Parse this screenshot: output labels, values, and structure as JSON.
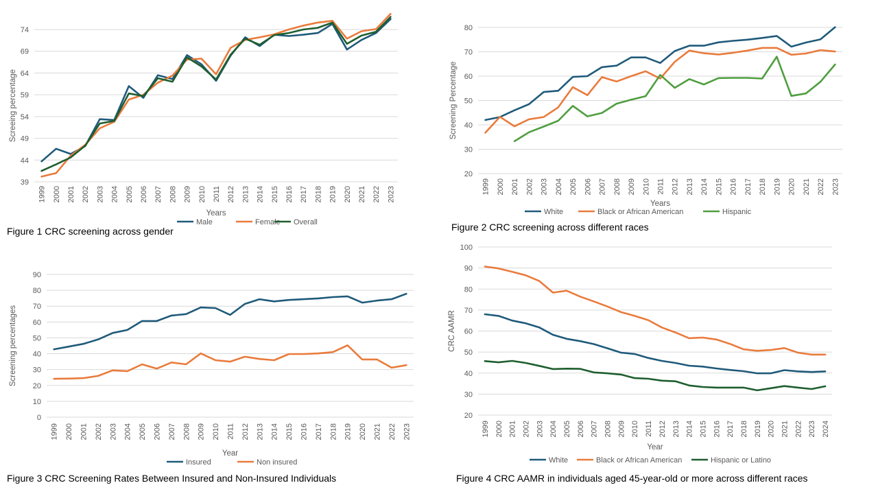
{
  "captions": {
    "fig1": "Figure 1 CRC screening across gender",
    "fig2": "Figure 2 CRC screening across different races",
    "fig3": "Figure 3 CRC Screening Rates Between Insured and Non-Insured Individuals",
    "fig4": "Figure 4 CRC AAMR in individuals aged 45-year-old or more across different races"
  },
  "chart_data": [
    {
      "type": "line",
      "title": "",
      "xlabel": "Years",
      "ylabel": "Screeing percentage",
      "ylim": [
        39,
        74
      ],
      "yticks": [
        39,
        44,
        49,
        54,
        59,
        64,
        69,
        74
      ],
      "grid": true,
      "legend": "bottom",
      "categories": [
        "1999",
        "2000",
        "2001",
        "2002",
        "2003",
        "2004",
        "2005",
        "2006",
        "2007",
        "2008",
        "2009",
        "2010",
        "2011",
        "2012",
        "2013",
        "2014",
        "2015",
        "2016",
        "2017",
        "2018",
        "2019",
        "2020",
        "2021",
        "2022",
        "2023"
      ],
      "series": [
        {
          "name": "Male",
          "color": "#1f5a7a",
          "values": [
            43.7,
            46.6,
            45.4,
            47.2,
            53.4,
            53.2,
            61.0,
            58.3,
            63.5,
            62.6,
            68.1,
            66.0,
            62.2,
            68.0,
            72.2,
            70.2,
            72.8,
            72.5,
            72.8,
            73.2,
            75.3,
            69.4,
            71.6,
            73.2,
            76.4
          ]
        },
        {
          "name": "Female",
          "color": "#e97b3c",
          "values": [
            40.2,
            41.0,
            45.0,
            47.5,
            51.3,
            52.8,
            57.9,
            59.0,
            61.8,
            63.4,
            67.1,
            67.3,
            63.7,
            69.8,
            71.6,
            72.2,
            72.9,
            74.0,
            74.9,
            75.6,
            76.0,
            71.9,
            73.6,
            74.1,
            77.6
          ]
        },
        {
          "name": "Overall",
          "color": "#1e5e2f",
          "values": [
            41.5,
            43.0,
            44.6,
            47.3,
            52.4,
            53.0,
            59.3,
            58.7,
            62.8,
            62.0,
            67.6,
            65.5,
            62.5,
            68.2,
            71.9,
            70.5,
            72.7,
            73.2,
            74.0,
            74.4,
            75.6,
            70.7,
            72.6,
            73.5,
            76.9
          ]
        }
      ]
    },
    {
      "type": "line",
      "title": "",
      "xlabel": "Years",
      "ylabel": "Screening Percentage",
      "ylim": [
        20,
        80
      ],
      "yticks": [
        20,
        30,
        40,
        50,
        60,
        70,
        80
      ],
      "grid": true,
      "legend": "bottom",
      "categories": [
        "1999",
        "2000",
        "2001",
        "2002",
        "2003",
        "2004",
        "2005",
        "2006",
        "2007",
        "2008",
        "2009",
        "2010",
        "2011",
        "2012",
        "2013",
        "2014",
        "2015",
        "2016",
        "2017",
        "2018",
        "2019",
        "2020",
        "2021",
        "2022",
        "2023"
      ],
      "series": [
        {
          "name": "White",
          "color": "#1f5a7a",
          "values": [
            42.0,
            43.2,
            46.0,
            48.5,
            53.5,
            54.0,
            59.7,
            60.0,
            63.7,
            64.3,
            67.7,
            67.7,
            65.4,
            70.3,
            72.5,
            72.5,
            73.9,
            74.5,
            75.0,
            75.7,
            76.5,
            72.1,
            73.8,
            75.1,
            80.1
          ]
        },
        {
          "name": "Black or African American",
          "color": "#e97b3c",
          "values": [
            36.8,
            43.3,
            39.4,
            42.3,
            43.2,
            47.2,
            55.5,
            52.2,
            59.6,
            57.8,
            60.0,
            62.0,
            59.0,
            65.9,
            70.5,
            69.4,
            68.9,
            69.6,
            70.5,
            71.6,
            71.6,
            68.8,
            69.3,
            70.7,
            70.1
          ]
        },
        {
          "name": "Hispanic",
          "color": "#4e9e3e",
          "values": [
            null,
            null,
            33.3,
            37.0,
            39.3,
            41.7,
            47.8,
            43.5,
            44.9,
            48.7,
            50.3,
            51.8,
            60.5,
            55.2,
            58.8,
            56.6,
            59.2,
            59.3,
            59.3,
            59.0,
            68.0,
            51.9,
            52.9,
            57.7,
            64.8
          ]
        }
      ]
    },
    {
      "type": "line",
      "title": "",
      "xlabel": "Year",
      "ylabel": "Screening percentages",
      "ylim": [
        0,
        90
      ],
      "yticks": [
        0,
        10,
        20,
        30,
        40,
        50,
        60,
        70,
        80,
        90
      ],
      "grid": true,
      "legend": "bottom",
      "categories": [
        "1999",
        "2000",
        "2001",
        "2002",
        "2003",
        "2004",
        "2005",
        "2006",
        "2007",
        "2008",
        "2009",
        "2010",
        "2011",
        "2012",
        "2013",
        "2014",
        "2015",
        "2016",
        "2017",
        "2018",
        "2019",
        "2020",
        "2021",
        "2022",
        "2023"
      ],
      "series": [
        {
          "name": "Insured",
          "color": "#1f5a7a",
          "values": [
            42.8,
            44.5,
            46.2,
            49.0,
            53.1,
            55.0,
            60.6,
            60.6,
            64.1,
            65.0,
            69.2,
            68.8,
            64.5,
            71.4,
            74.4,
            73.0,
            73.9,
            74.4,
            74.9,
            75.7,
            76.2,
            72.2,
            73.5,
            74.4,
            77.8
          ]
        },
        {
          "name": "Non insured",
          "color": "#e97b3c",
          "values": [
            24.2,
            24.3,
            24.6,
            26.0,
            29.5,
            29.0,
            33.3,
            30.6,
            34.5,
            33.3,
            40.2,
            35.9,
            35.0,
            38.1,
            36.7,
            35.9,
            39.8,
            39.8,
            40.2,
            41.0,
            45.3,
            36.4,
            36.4,
            31.2,
            32.8
          ]
        }
      ]
    },
    {
      "type": "line",
      "title": "",
      "xlabel": "Year",
      "ylabel": "CRC AAMR",
      "ylim": [
        20,
        100
      ],
      "yticks": [
        20,
        30,
        40,
        50,
        60,
        70,
        80,
        90,
        100
      ],
      "grid": true,
      "legend": "bottom",
      "categories": [
        "1999",
        "2000",
        "2001",
        "2002",
        "2003",
        "2004",
        "2005",
        "2006",
        "2007",
        "2008",
        "2009",
        "2010",
        "2011",
        "2012",
        "2013",
        "2014",
        "2015",
        "2016",
        "2017",
        "2018",
        "2019",
        "2020",
        "2021",
        "2022",
        "2023",
        "2024"
      ],
      "series": [
        {
          "name": "White",
          "color": "#1f5a7a",
          "values": [
            68.0,
            67.2,
            65.0,
            63.7,
            61.7,
            58.2,
            56.3,
            55.2,
            53.8,
            51.8,
            49.7,
            49.1,
            47.2,
            45.8,
            44.8,
            43.5,
            43.1,
            42.2,
            41.5,
            40.9,
            39.9,
            39.9,
            41.4,
            40.8,
            40.5,
            40.8
          ]
        },
        {
          "name": "Black or African American",
          "color": "#e97b3c",
          "values": [
            90.7,
            89.8,
            88.2,
            86.5,
            83.8,
            78.3,
            79.2,
            76.4,
            74.1,
            71.7,
            69.0,
            67.2,
            65.2,
            61.7,
            59.3,
            56.6,
            56.9,
            56.0,
            53.9,
            51.3,
            50.6,
            51.0,
            51.9,
            49.7,
            48.8,
            48.8
          ]
        },
        {
          "name": "Hispanic or Latino",
          "color": "#1e5e2f",
          "values": [
            45.7,
            45.1,
            45.8,
            44.8,
            43.4,
            41.9,
            42.1,
            42.0,
            40.3,
            39.9,
            39.3,
            37.6,
            37.3,
            36.4,
            36.1,
            34.1,
            33.4,
            33.1,
            33.1,
            33.1,
            31.8,
            32.8,
            33.8,
            33.1,
            32.4,
            33.7
          ]
        }
      ]
    }
  ]
}
